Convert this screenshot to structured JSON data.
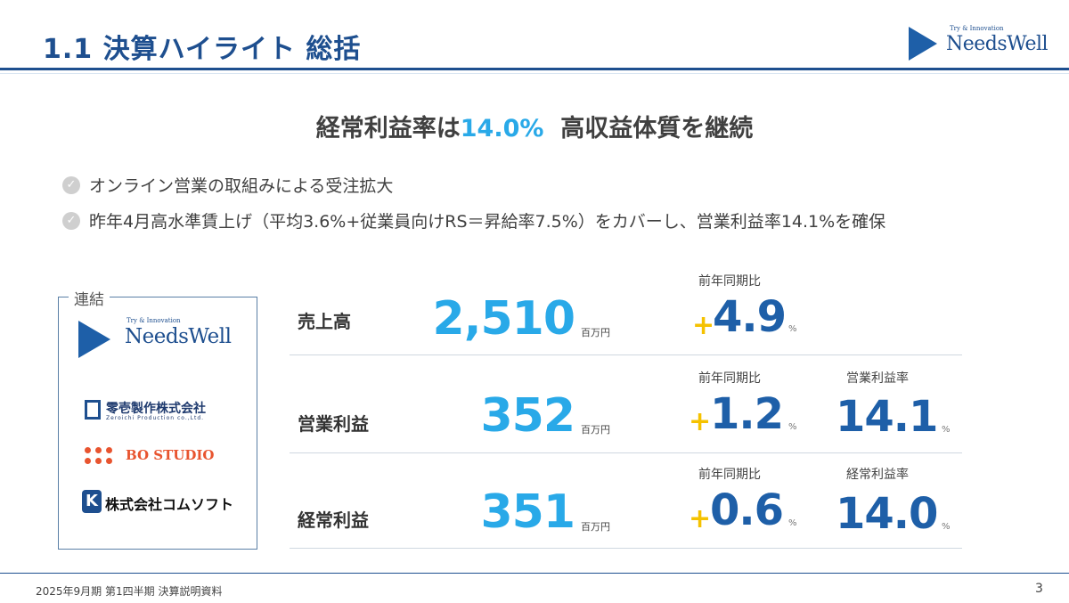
{
  "header": {
    "title": "1.1  決算ハイライト  総括",
    "logo_tagline": "Try & Innovation",
    "logo_name": "NeedsWell"
  },
  "headline": {
    "before": "経常利益率は",
    "highlight": "14.0%",
    "after": "  高収益体質を継続"
  },
  "bullets": [
    "オンライン営業の取組みによる受注拡大",
    "昨年4月高水準賃上げ（平均3.6%+従業員向けRS＝昇給率7.5%）をカバーし、営業利益率14.1%を確保"
  ],
  "consolidated": {
    "label": "連結",
    "companies": {
      "needswell_tagline": "Try & Innovation",
      "needswell_name": "NeedsWell",
      "zeroichi_name": "零壱製作株式会社",
      "zeroichi_sub": "Zeroichi Production co.,Ltd.",
      "bo_studio": "BO STUDIO",
      "comsoft_name": "株式会社コムソフト"
    }
  },
  "metrics": [
    {
      "label": "売上高",
      "value": "2,510",
      "unit": "百万円",
      "yoy_caption": "前年同期比",
      "yoy_sign": "+",
      "yoy_value": "4.9",
      "yoy_unit": "%"
    },
    {
      "label": "営業利益",
      "value": "352",
      "unit": "百万円",
      "yoy_caption": "前年同期比",
      "yoy_sign": "+",
      "yoy_value": "1.2",
      "yoy_unit": "%",
      "margin_caption": "営業利益率",
      "margin_value": "14.1",
      "margin_unit": "%"
    },
    {
      "label": "経常利益",
      "value": "351",
      "unit": "百万円",
      "yoy_caption": "前年同期比",
      "yoy_sign": "+",
      "yoy_value": "0.6",
      "yoy_unit": "%",
      "margin_caption": "経常利益率",
      "margin_value": "14.0",
      "margin_unit": "%"
    }
  ],
  "footer": {
    "text": "2025年9月期 第1四半期 決算説明資料",
    "page": "3"
  },
  "colors": {
    "brand_navy": "#1e4f8f",
    "accent_cyan": "#29a9e8",
    "plus_yellow": "#f5c200",
    "bo_orange": "#e8542f"
  }
}
